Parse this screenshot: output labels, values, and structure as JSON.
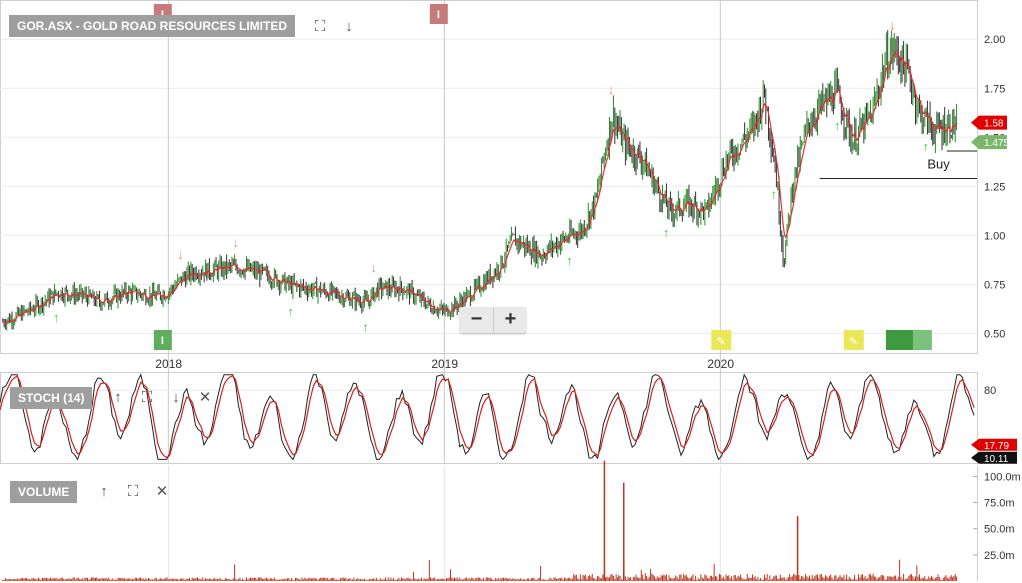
{
  "price_panel": {
    "title": "GOR.ASX - GOLD ROAD RESOURCES LIMITED",
    "buy_label": "Buy",
    "last_price_label": "1.58",
    "ma_price_label": "1.475"
  },
  "stoch_panel": {
    "title": "STOCH (14)",
    "value_label": "17.79",
    "value_label_2": "10.11"
  },
  "volume_panel": {
    "title": "VOLUME"
  },
  "colors": {
    "price": "#e03030",
    "candle_up": "#2a8a2a",
    "candle_down": "#333333",
    "volume": "#c0341d",
    "buy_arrow": "#3ccf3c",
    "sell_arrow": "#e58a8a"
  },
  "icons": {
    "expand": "expand-icon",
    "down": "arrow-down-icon",
    "up": "arrow-up-icon",
    "close": "close-icon",
    "zoom_out": "minus-icon",
    "zoom_in": "plus-icon"
  },
  "chart_data": [
    {
      "type": "line",
      "title": "GOR.ASX - GOLD ROAD RESOURCES LIMITED",
      "x_ticks": [
        "2018",
        "2019",
        "2020"
      ],
      "y_ticks": [
        "0.50",
        "0.75",
        "1.00",
        "1.25",
        "1.50",
        "1.75",
        "2.00"
      ],
      "ylim": [
        0.4,
        2.2
      ],
      "series": [
        {
          "values": [
            [
              2017.4,
              0.56
            ],
            [
              2017.5,
              0.62
            ],
            [
              2017.6,
              0.71
            ],
            [
              2017.7,
              0.69
            ],
            [
              2017.75,
              0.66
            ],
            [
              2017.85,
              0.71
            ],
            [
              2017.95,
              0.69
            ],
            [
              2018.0,
              0.71
            ],
            [
              2018.05,
              0.78
            ],
            [
              2018.1,
              0.82
            ],
            [
              2018.15,
              0.82
            ],
            [
              2018.25,
              0.84
            ],
            [
              2018.35,
              0.8
            ],
            [
              2018.45,
              0.74
            ],
            [
              2018.55,
              0.72
            ],
            [
              2018.65,
              0.68
            ],
            [
              2018.72,
              0.66
            ],
            [
              2018.76,
              0.73
            ],
            [
              2018.85,
              0.73
            ],
            [
              2018.95,
              0.64
            ],
            [
              2019.0,
              0.61
            ],
            [
              2019.05,
              0.65
            ],
            [
              2019.12,
              0.73
            ],
            [
              2019.2,
              0.84
            ],
            [
              2019.25,
              0.98
            ],
            [
              2019.35,
              0.9
            ],
            [
              2019.42,
              0.97
            ],
            [
              2019.5,
              1.03
            ],
            [
              2019.55,
              1.18
            ],
            [
              2019.58,
              1.42
            ],
            [
              2019.61,
              1.62
            ],
            [
              2019.65,
              1.47
            ],
            [
              2019.72,
              1.38
            ],
            [
              2019.78,
              1.21
            ],
            [
              2019.82,
              1.12
            ],
            [
              2019.88,
              1.16
            ],
            [
              2019.95,
              1.12
            ],
            [
              2020.02,
              1.38
            ],
            [
              2020.12,
              1.55
            ],
            [
              2020.16,
              1.72
            ],
            [
              2020.2,
              1.34
            ],
            [
              2020.23,
              0.86
            ],
            [
              2020.26,
              1.25
            ],
            [
              2020.32,
              1.58
            ],
            [
              2020.36,
              1.65
            ],
            [
              2020.42,
              1.73
            ],
            [
              2020.48,
              1.48
            ],
            [
              2020.55,
              1.62
            ],
            [
              2020.6,
              1.9
            ],
            [
              2020.63,
              1.95
            ],
            [
              2020.68,
              1.83
            ],
            [
              2020.72,
              1.63
            ],
            [
              2020.78,
              1.53
            ],
            [
              2020.82,
              1.56
            ],
            [
              2020.86,
              1.57
            ]
          ]
        }
      ],
      "buy_level": 1.29,
      "ma_level": 1.475,
      "last": 1.58,
      "sell_signal_dates": [
        2018.05,
        2018.25,
        2018.75,
        2019.61,
        2020.63
      ],
      "buy_signal_dates": [
        2017.6,
        2018.45,
        2018.72,
        2019.46,
        2019.81,
        2020.2,
        2020.43,
        2020.75
      ]
    },
    {
      "type": "line",
      "title": "STOCH (14)",
      "y_ticks": [
        "80"
      ],
      "ylim": [
        0,
        100
      ],
      "current": 17.79,
      "current_2": 10.11
    },
    {
      "type": "bar",
      "title": "VOLUME",
      "y_ticks": [
        "25.0m",
        "50.0m",
        "75.0m",
        "100.0m"
      ],
      "ylim": [
        0,
        110
      ],
      "spikes": [
        [
          2019.58,
          115
        ],
        [
          2019.65,
          94
        ],
        [
          2020.28,
          62
        ]
      ]
    }
  ]
}
